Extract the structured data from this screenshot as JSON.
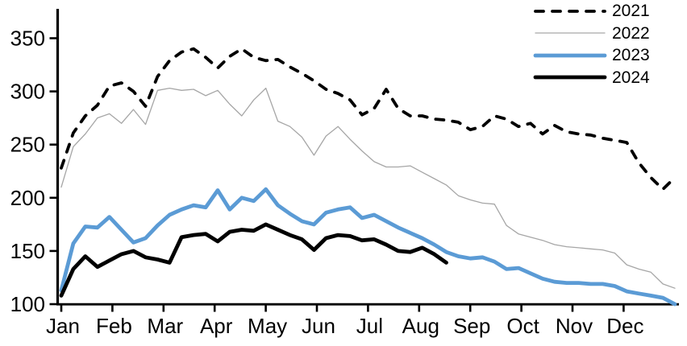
{
  "chart": {
    "background_color": "#ffffff",
    "axis_color": "#000000",
    "text_color": "#000000",
    "accent_blue": "#5b9bd5",
    "gray_line": "#a6a6a6"
  },
  "chart_data": {
    "type": "line",
    "title": "",
    "xlabel": "",
    "ylabel": "",
    "grid": false,
    "legend_position": "top-right",
    "x_axis": {
      "tick_labels": [
        "Jan",
        "Feb",
        "Mar",
        "Apr",
        "May",
        "Jun",
        "Jul",
        "Aug",
        "Sep",
        "Oct",
        "Nov",
        "Dec"
      ],
      "unit": "weekly points",
      "points_per_year": 52
    },
    "y_axis": {
      "ticks": [
        100,
        150,
        200,
        250,
        300,
        350
      ],
      "range": [
        100,
        377
      ]
    },
    "series": [
      {
        "name": "2021",
        "color": "#000000",
        "style": "dashed",
        "width": 3.8,
        "values": [
          228,
          261,
          277,
          287,
          305,
          308,
          300,
          286,
          314,
          329,
          337,
          340,
          332,
          322,
          333,
          340,
          332,
          329,
          330,
          323,
          317,
          310,
          302,
          298,
          292,
          278,
          284,
          302,
          284,
          277,
          277,
          274,
          273,
          271,
          264,
          267,
          277,
          274,
          267,
          270,
          260,
          268,
          262,
          260,
          259,
          256,
          254,
          252,
          233,
          219,
          208,
          219
        ]
      },
      {
        "name": "2022",
        "color": "#a6a6a6",
        "style": "solid",
        "width": 1.3,
        "values": [
          210,
          248,
          260,
          275,
          279,
          270,
          283,
          269,
          301,
          303,
          301,
          302,
          296,
          301,
          288,
          277,
          292,
          303,
          272,
          267,
          257,
          240,
          258,
          267,
          255,
          244,
          234,
          229,
          229,
          230,
          224,
          218,
          212,
          202,
          198,
          195,
          194,
          174,
          166,
          163,
          160,
          156,
          154,
          153,
          152,
          151,
          148,
          137,
          133,
          130,
          119,
          115
        ]
      },
      {
        "name": "2023",
        "color": "#5b9bd5",
        "style": "solid",
        "width": 4.8,
        "values": [
          113,
          157,
          173,
          172,
          182,
          170,
          158,
          162,
          174,
          184,
          189,
          193,
          191,
          207,
          189,
          200,
          197,
          208,
          193,
          185,
          178,
          175,
          186,
          189,
          191,
          181,
          184,
          178,
          172,
          167,
          162,
          156,
          149,
          145,
          143,
          144,
          140,
          133,
          134,
          129,
          124,
          121,
          120,
          120,
          119,
          119,
          117,
          112,
          110,
          108,
          106,
          100
        ]
      },
      {
        "name": "2024",
        "color": "#000000",
        "style": "solid",
        "width": 4.8,
        "values": [
          108,
          133,
          145,
          135,
          141,
          147,
          150,
          144,
          142,
          139,
          163,
          165,
          166,
          159,
          168,
          170,
          169,
          175,
          170,
          165,
          161,
          151,
          162,
          165,
          164,
          160,
          161,
          156,
          150,
          149,
          153,
          147,
          139
        ]
      }
    ]
  }
}
